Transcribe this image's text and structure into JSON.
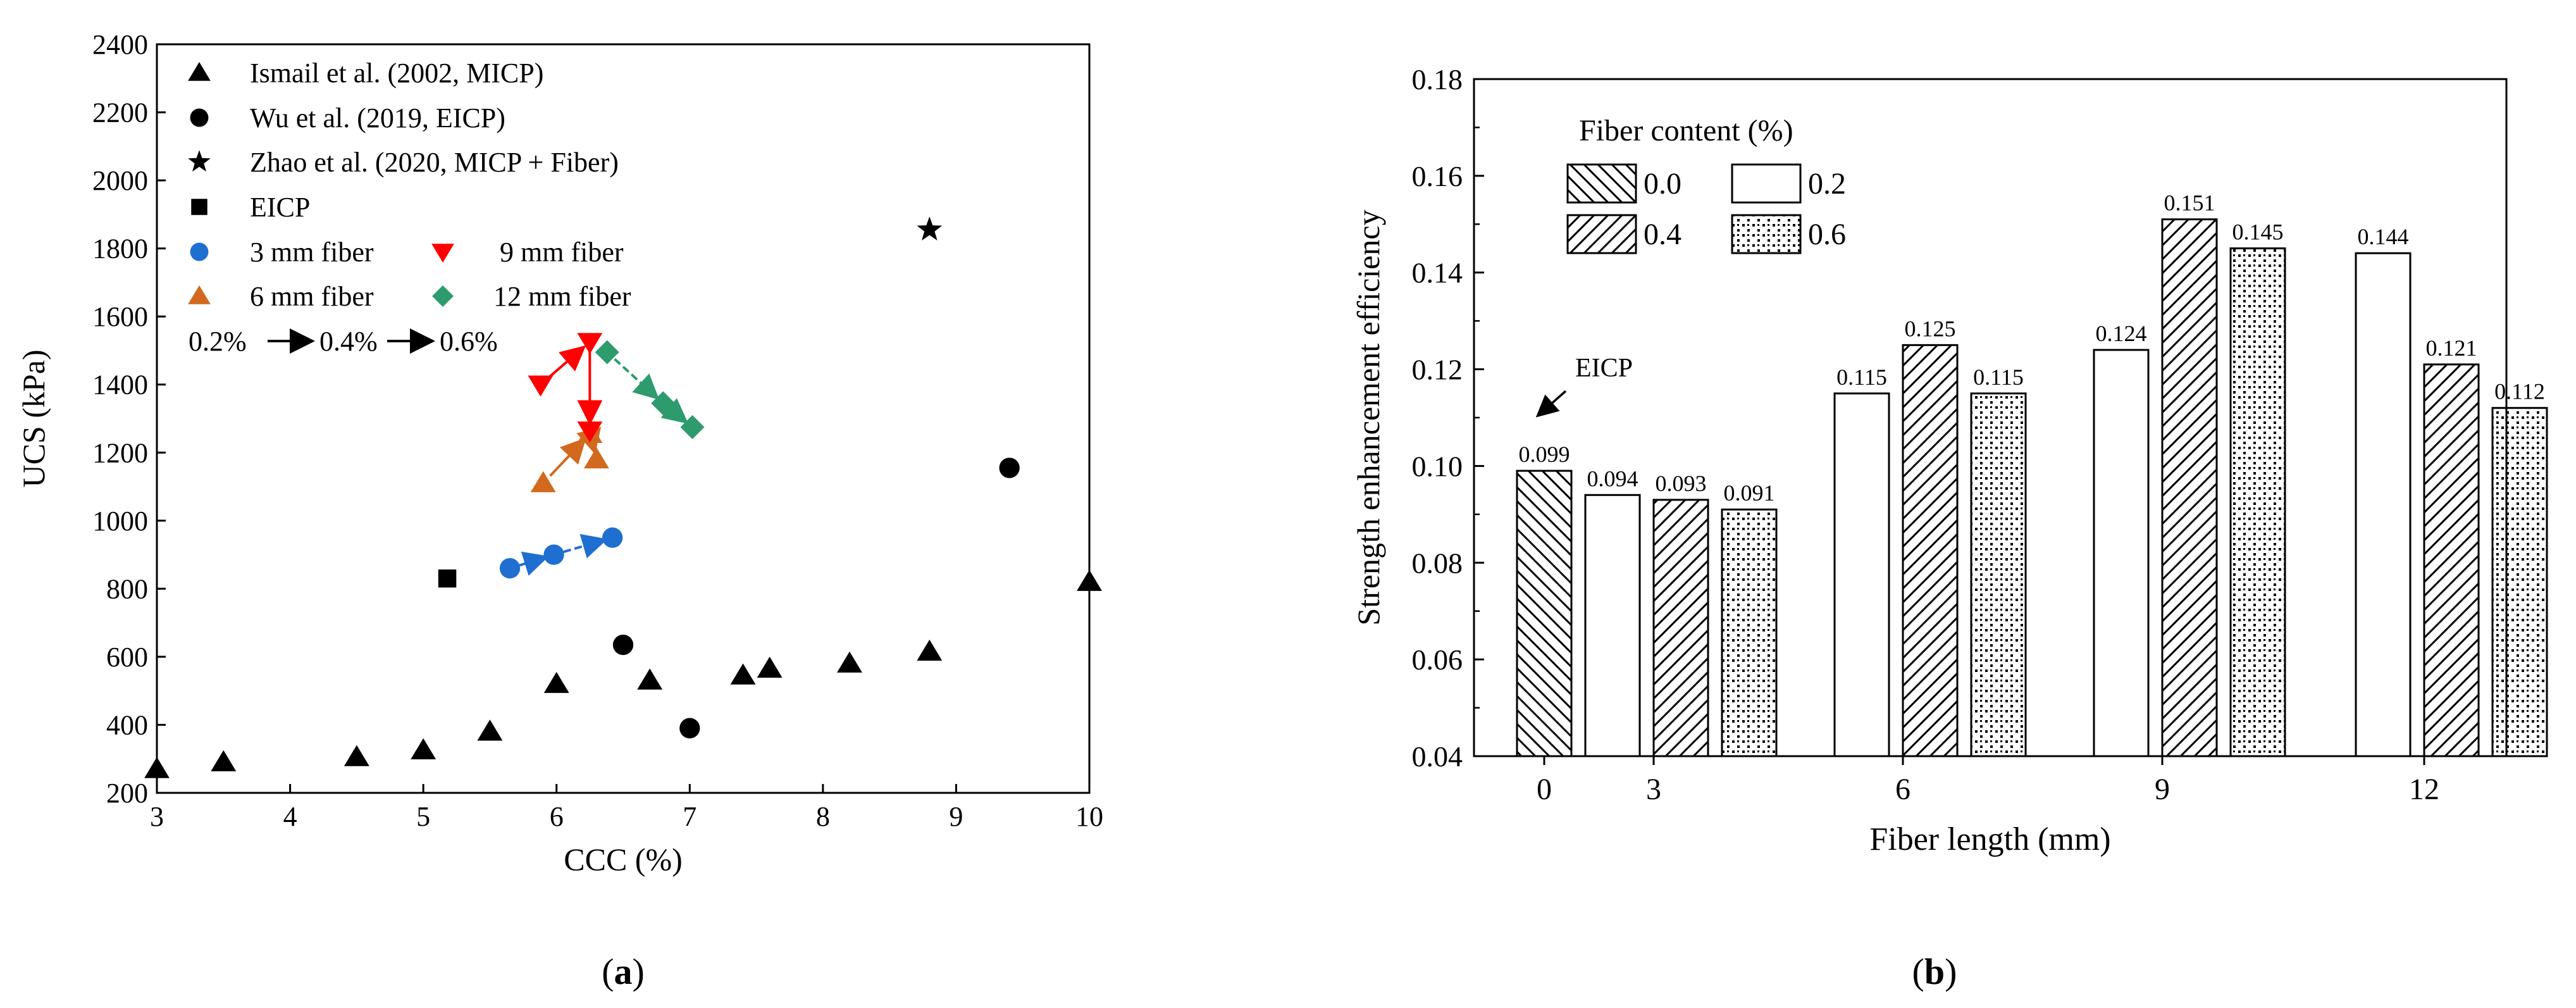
{
  "chart_data": [
    {
      "type": "scatter",
      "panel_label": "a",
      "xlabel": "CCC (%)",
      "ylabel": "UCS (kPa)",
      "xlim": [
        3,
        10
      ],
      "ylim": [
        200,
        2400
      ],
      "xticks": [
        3,
        4,
        5,
        6,
        7,
        8,
        9,
        10
      ],
      "yticks": [
        200,
        400,
        600,
        800,
        1000,
        1200,
        1400,
        1600,
        1800,
        2000,
        2200,
        2400
      ],
      "grid": false,
      "legend_position": "top-left",
      "arrow_legend": [
        "0.2%",
        "0.4%",
        "0.6%"
      ],
      "series": [
        {
          "name": "Ismail et al.    (2002, MICP)",
          "marker": "triangle",
          "color": "#000000",
          "x": [
            3.0,
            3.5,
            4.5,
            5.0,
            5.5,
            6.0,
            6.7,
            7.4,
            7.6,
            8.2,
            8.8,
            10.0
          ],
          "y": [
            270,
            290,
            305,
            325,
            380,
            520,
            530,
            545,
            565,
            580,
            615,
            820
          ]
        },
        {
          "name": "Wu et al. (2019, EICP)",
          "marker": "circle",
          "color": "#000000",
          "x": [
            6.5,
            7.0,
            9.4
          ],
          "y": [
            635,
            390,
            1155
          ]
        },
        {
          "name": "Zhao et al.  (2020, MICP + Fiber)",
          "marker": "star",
          "color": "#000000",
          "x": [
            8.8
          ],
          "y": [
            1855
          ]
        },
        {
          "name": "EICP",
          "marker": "square",
          "color": "#000000",
          "x": [
            5.18
          ],
          "y": [
            830
          ]
        },
        {
          "name": "3 mm fiber",
          "marker": "circle",
          "color": "#1f6fd1",
          "connected": true,
          "x": [
            5.65,
            5.98,
            6.42
          ],
          "y": [
            860,
            900,
            950
          ]
        },
        {
          "name": "6 mm fiber",
          "marker": "triangle",
          "color": "#d2691e",
          "connected": true,
          "x": [
            5.9,
            6.25,
            6.3
          ],
          "y": [
            1110,
            1255,
            1180
          ]
        },
        {
          "name": "9 mm  fiber",
          "marker": "triangle-down",
          "color": "#ff0000",
          "connected": true,
          "x": [
            5.88,
            6.25,
            6.25
          ],
          "y": [
            1400,
            1525,
            1265
          ]
        },
        {
          "name": "12 mm fiber",
          "marker": "diamond",
          "color": "#2e9b6e",
          "connected": true,
          "x": [
            6.38,
            6.8,
            7.02
          ],
          "y": [
            1495,
            1345,
            1275
          ]
        }
      ]
    },
    {
      "type": "bar",
      "panel_label": "b",
      "xlabel": "Fiber length (mm)",
      "ylabel": "Strength enhancement efficiency",
      "ylim": [
        0.04,
        0.18
      ],
      "yticks": [
        0.04,
        0.06,
        0.08,
        0.1,
        0.12,
        0.14,
        0.16,
        0.18
      ],
      "categories": [
        "0",
        "3",
        "6",
        "9",
        "12"
      ],
      "legend_title": "Fiber content (%)",
      "legend_position": "top-left",
      "annotation": "EICP",
      "series": [
        {
          "name": "0.0",
          "pattern": "backslash-hatch",
          "values": [
            0.099,
            null,
            null,
            null,
            null
          ],
          "labels": [
            "0.099",
            "",
            "",
            "",
            ""
          ]
        },
        {
          "name": "0.2",
          "pattern": "empty",
          "values": [
            null,
            0.094,
            0.115,
            0.124,
            0.144
          ],
          "labels": [
            "",
            "0.094",
            "0.115",
            "0.124",
            "0.144"
          ]
        },
        {
          "name": "0.4",
          "pattern": "slash-hatch",
          "values": [
            null,
            0.093,
            0.125,
            0.151,
            0.121
          ],
          "labels": [
            "",
            "0.093",
            "0.125",
            "0.151",
            "0.121"
          ]
        },
        {
          "name": "0.6",
          "pattern": "dots",
          "values": [
            null,
            0.091,
            0.115,
            0.145,
            0.112
          ],
          "labels": [
            "",
            "0.091",
            "0.115",
            "0.145",
            "0.112"
          ]
        }
      ]
    }
  ]
}
